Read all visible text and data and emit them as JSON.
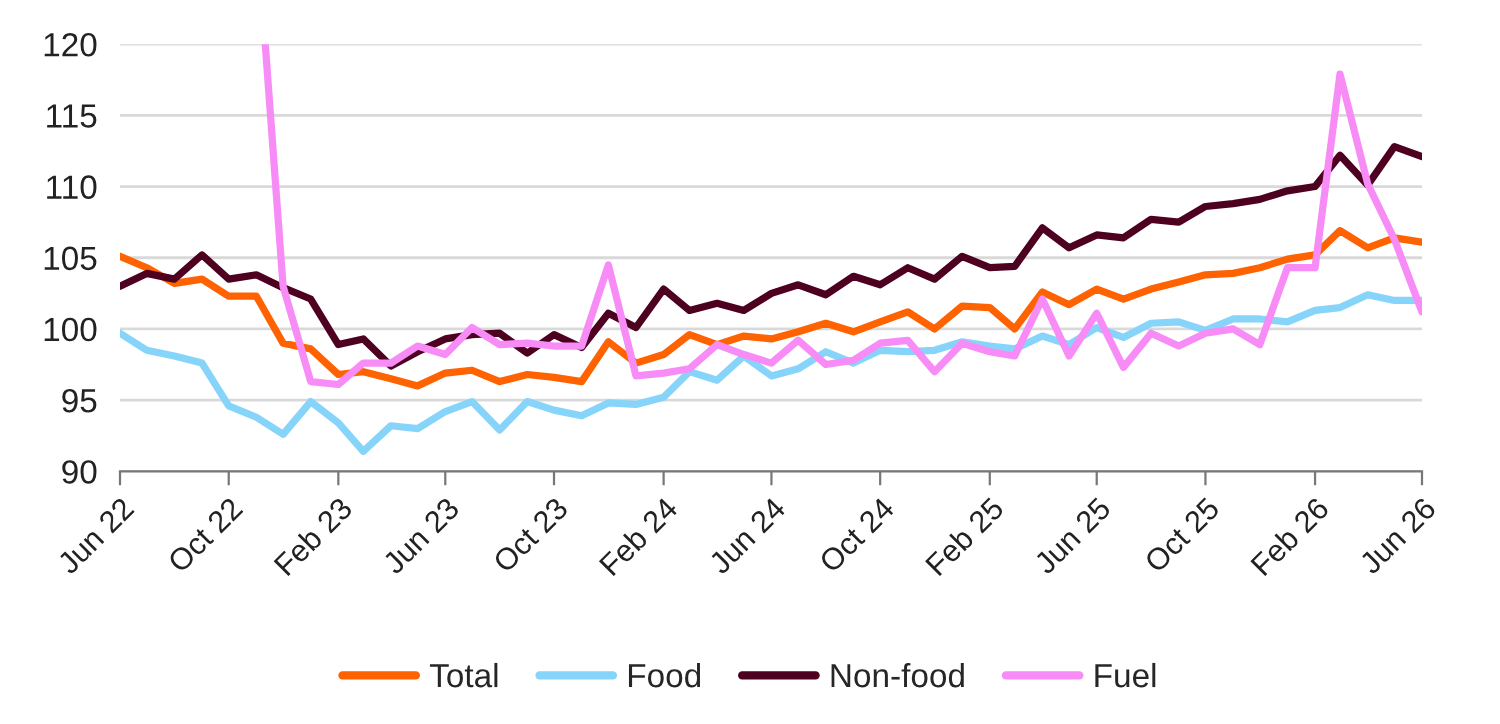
{
  "chart_data": {
    "type": "line",
    "x": [
      "2022-06",
      "2022-07",
      "2022-08",
      "2022-09",
      "2022-10",
      "2022-11",
      "2022-12",
      "2023-01",
      "2023-02",
      "2023-03",
      "2023-04",
      "2023-05",
      "2023-06",
      "2023-07",
      "2023-08",
      "2023-09",
      "2023-10",
      "2023-11",
      "2023-12",
      "2024-01",
      "2024-02",
      "2024-03",
      "2024-04",
      "2024-05",
      "2024-06",
      "2024-07",
      "2024-08",
      "2024-09",
      "2024-10",
      "2024-11",
      "2024-12",
      "2025-01",
      "2025-02",
      "2025-03",
      "2025-04",
      "2025-05",
      "2025-06",
      "2025-07",
      "2025-08",
      "2025-09",
      "2025-10",
      "2025-11",
      "2025-12",
      "2026-01",
      "2026-02",
      "2026-03",
      "2026-04",
      "2026-05",
      "2026-06"
    ],
    "series": [
      {
        "name": "Total",
        "color": "#ff6200",
        "values": [
          105.1,
          104.3,
          103.2,
          103.5,
          102.3,
          102.3,
          99.0,
          98.6,
          96.8,
          97.0,
          96.5,
          96.0,
          96.9,
          97.1,
          96.3,
          96.8,
          96.6,
          96.3,
          99.1,
          97.6,
          98.2,
          99.6,
          98.9,
          99.5,
          99.3,
          99.8,
          100.4,
          99.8,
          100.5,
          101.2,
          100.0,
          101.6,
          101.5,
          100.0,
          102.6,
          101.7,
          102.8,
          102.1,
          102.8,
          103.3,
          103.8,
          103.9,
          104.3,
          104.9,
          105.2,
          106.9,
          105.7,
          106.4,
          106.1
        ]
      },
      {
        "name": "Food",
        "color": "#87d4fa",
        "values": [
          99.7,
          98.5,
          98.1,
          97.6,
          94.6,
          93.8,
          92.6,
          94.9,
          93.4,
          91.4,
          93.2,
          93.0,
          94.2,
          94.9,
          92.9,
          94.9,
          94.3,
          93.9,
          94.8,
          94.7,
          95.2,
          97.0,
          96.4,
          98.1,
          96.7,
          97.2,
          98.4,
          97.6,
          98.5,
          98.4,
          98.5,
          99.1,
          98.8,
          98.6,
          99.5,
          98.9,
          100.1,
          99.4,
          100.4,
          100.5,
          99.9,
          100.7,
          100.7,
          100.5,
          101.3,
          101.5,
          102.4,
          102.0,
          102.0
        ]
      },
      {
        "name": "Non-food",
        "color": "#4d0020",
        "values": [
          103.0,
          103.9,
          103.5,
          105.2,
          103.5,
          103.8,
          102.9,
          102.1,
          98.9,
          99.3,
          97.4,
          98.4,
          99.3,
          99.6,
          99.7,
          98.3,
          99.6,
          98.7,
          101.1,
          100.1,
          102.8,
          101.3,
          101.8,
          101.3,
          102.5,
          103.1,
          102.4,
          103.7,
          103.1,
          104.3,
          103.5,
          105.1,
          104.3,
          104.4,
          107.1,
          105.7,
          106.6,
          106.4,
          107.7,
          107.5,
          108.6,
          108.8,
          109.1,
          109.7,
          110.0,
          112.2,
          110.1,
          112.8,
          112.1
        ]
      },
      {
        "name": "Fuel",
        "color": "#f78cf7",
        "x": [
          "2022-11-11",
          "2022-12",
          "2023-01",
          "2023-02",
          "2023-03",
          "2023-04",
          "2023-05",
          "2023-06",
          "2023-07",
          "2023-08",
          "2023-09",
          "2023-10",
          "2023-11",
          "2023-12",
          "2024-01",
          "2024-02",
          "2024-03",
          "2024-04",
          "2024-05",
          "2024-06",
          "2024-07",
          "2024-08",
          "2024-09",
          "2024-10",
          "2024-11",
          "2024-12",
          "2025-01",
          "2025-02",
          "2025-03",
          "2025-04",
          "2025-05",
          "2025-06",
          "2025-07",
          "2025-08",
          "2025-09",
          "2025-10",
          "2025-11",
          "2025-12",
          "2026-01",
          "2026-02",
          "2026-03",
          "2026-04",
          "2026-05",
          "2026-06"
        ],
        "values": [
          120,
          103.0,
          96.3,
          96.1,
          97.6,
          97.6,
          98.8,
          98.2,
          100.1,
          98.9,
          99.0,
          98.8,
          98.8,
          104.5,
          96.7,
          96.9,
          97.2,
          98.9,
          98.2,
          97.6,
          99.2,
          97.5,
          97.8,
          99.0,
          99.2,
          97.0,
          99.0,
          98.4,
          98.1,
          102.1,
          98.1,
          101.1,
          97.3,
          99.7,
          98.8,
          99.7,
          100.0,
          98.9,
          104.3,
          104.3,
          117.9,
          110.2,
          106.3,
          101.2
        ]
      }
    ],
    "xlim": [
      "2022-06",
      "2026-06"
    ],
    "xticks": [
      {
        "value": "2022-06",
        "label": "Jun 22"
      },
      {
        "value": "2022-10",
        "label": "Oct 22"
      },
      {
        "value": "2023-02",
        "label": "Feb 23"
      },
      {
        "value": "2023-06",
        "label": "Jun 23"
      },
      {
        "value": "2023-10",
        "label": "Oct 23"
      },
      {
        "value": "2024-02",
        "label": "Feb 24"
      },
      {
        "value": "2024-06",
        "label": "Jun 24"
      },
      {
        "value": "2024-10",
        "label": "Oct 24"
      },
      {
        "value": "2025-02",
        "label": "Feb 25"
      },
      {
        "value": "2025-06",
        "label": "Jun 25"
      },
      {
        "value": "2025-10",
        "label": "Oct 25"
      },
      {
        "value": "2026-02",
        "label": "Feb 26"
      },
      {
        "value": "2026-06",
        "label": "Jun 26"
      }
    ],
    "ylim": [
      90,
      120
    ],
    "yticks": [
      90,
      95,
      100,
      105,
      110,
      115,
      120
    ],
    "grid": "y",
    "legend": "bottom",
    "marker": "none",
    "line_style": "solid"
  }
}
